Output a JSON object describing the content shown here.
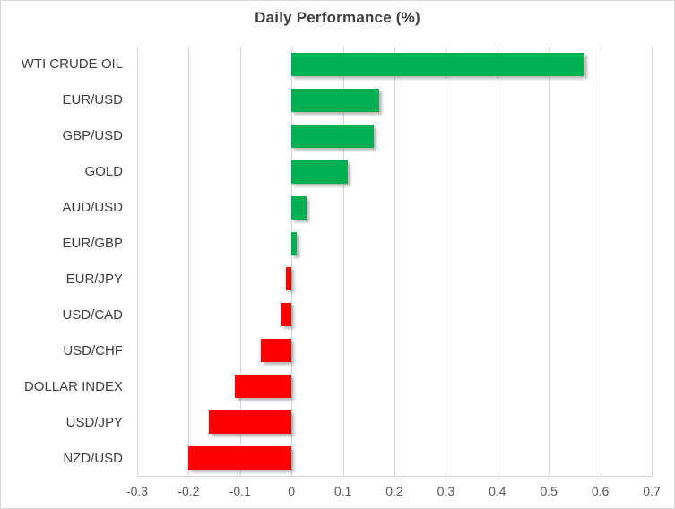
{
  "title": "Daily Performance (%)",
  "chart_data": {
    "type": "bar",
    "orientation": "horizontal",
    "title": "Daily Performance (%)",
    "xlabel": "",
    "ylabel": "",
    "categories": [
      "WTI CRUDE OIL",
      "EUR/USD",
      "GBP/USD",
      "GOLD",
      "AUD/USD",
      "EUR/GBP",
      "EUR/JPY",
      "USD/CAD",
      "USD/CHF",
      "DOLLAR INDEX",
      "USD/JPY",
      "NZD/USD"
    ],
    "values": [
      0.57,
      0.17,
      0.16,
      0.11,
      0.03,
      0.01,
      -0.01,
      -0.02,
      -0.06,
      -0.11,
      -0.16,
      -0.2
    ],
    "xlim": [
      -0.3,
      0.7
    ],
    "xticks": [
      -0.3,
      -0.2,
      -0.1,
      0,
      0.1,
      0.2,
      0.3,
      0.4,
      0.5,
      0.6,
      0.7
    ],
    "xtick_labels": [
      "-0.3",
      "-0.2",
      "-0.1",
      "0",
      "0.1",
      "0.2",
      "0.3",
      "0.4",
      "0.5",
      "0.6",
      "0.7"
    ],
    "grid": true,
    "legend": false,
    "positive_color": "#00b050",
    "negative_color": "#ff0000",
    "gridline_color": "#d9d9d9",
    "title_color": "#3f3f3f",
    "category_label_color": "#404040",
    "tick_label_color": "#595959"
  }
}
